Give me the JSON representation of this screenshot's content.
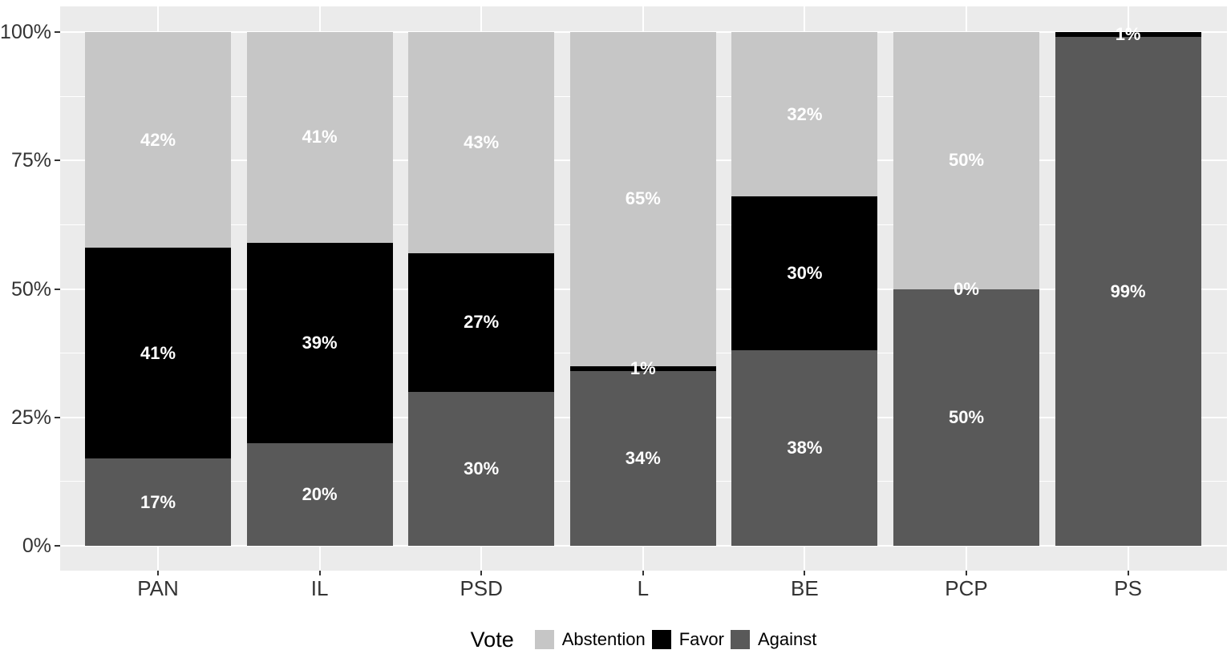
{
  "chart_data": {
    "type": "bar",
    "stacked": true,
    "title": "",
    "xlabel": "",
    "ylabel": "",
    "ylim": [
      0,
      100
    ],
    "grid": true,
    "panel_bg": "#ebebeb",
    "grid_color": "#ffffff",
    "axis_text_color": "#333333",
    "bar_label_color": "#ffffff",
    "categories": [
      "PAN",
      "IL",
      "PSD",
      "L",
      "BE",
      "PCP",
      "PS"
    ],
    "y_ticks": [
      {
        "pct": 0,
        "label": "0%"
      },
      {
        "pct": 25,
        "label": "25%"
      },
      {
        "pct": 50,
        "label": "50%"
      },
      {
        "pct": 75,
        "label": "75%"
      },
      {
        "pct": 100,
        "label": "100%"
      }
    ],
    "y_minor_ticks": [
      12.5,
      37.5,
      62.5,
      87.5
    ],
    "series_stack_order_bottom_to_top": [
      "Against",
      "Favor",
      "Abstention"
    ],
    "series": [
      {
        "name": "Against",
        "color": "#595959",
        "values": [
          17,
          20,
          30,
          34,
          38,
          50,
          99
        ],
        "labels": [
          "17%",
          "20%",
          "30%",
          "34%",
          "38%",
          "50%",
          "99%"
        ]
      },
      {
        "name": "Favor",
        "color": "#000000",
        "values": [
          41,
          39,
          27,
          1,
          30,
          0,
          1
        ],
        "labels": [
          "41%",
          "39%",
          "27%",
          "1%",
          "30%",
          "0%",
          "1%"
        ]
      },
      {
        "name": "Abstention",
        "color": "#c6c6c6",
        "values": [
          42,
          41,
          43,
          65,
          32,
          50,
          0
        ],
        "labels": [
          "42%",
          "41%",
          "43%",
          "65%",
          "32%",
          "50%",
          null
        ]
      }
    ],
    "legend": {
      "title": "Vote",
      "position": "bottom",
      "entries": [
        {
          "label": "Abstention",
          "color": "#c6c6c6"
        },
        {
          "label": "Favor",
          "color": "#000000"
        },
        {
          "label": "Against",
          "color": "#595959"
        }
      ]
    }
  }
}
